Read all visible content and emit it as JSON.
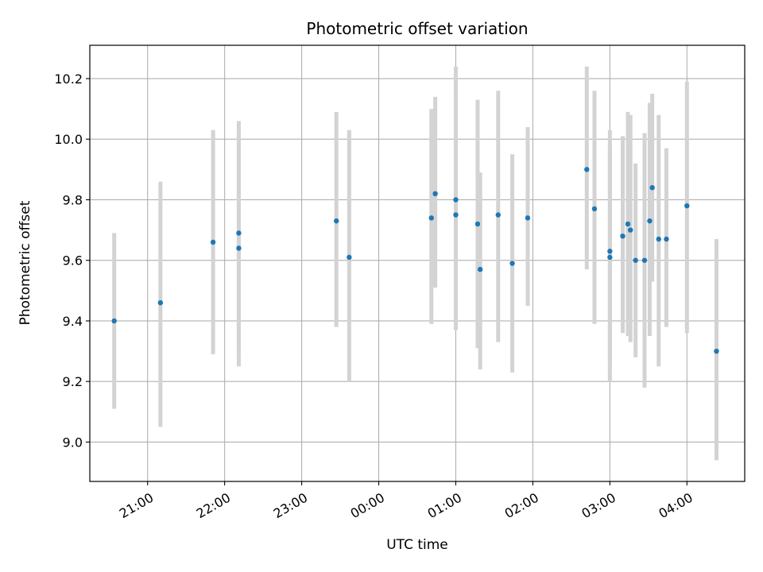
{
  "chart_data": {
    "type": "scatter",
    "title": "Photometric offset variation",
    "xlabel": "UTC time",
    "ylabel": "Photometric offset",
    "x_unit": "UTC time (HH:MM), times after midnight fall on the following day",
    "xlim": [
      "20:15",
      "04:45"
    ],
    "ylim": [
      8.87,
      10.31
    ],
    "x_ticks": [
      "21:00",
      "22:00",
      "23:00",
      "00:00",
      "01:00",
      "02:00",
      "03:00",
      "04:00"
    ],
    "y_ticks": [
      9.0,
      9.2,
      9.4,
      9.6,
      9.8,
      10.0,
      10.2
    ],
    "y_tick_labels": [
      "9.0",
      "9.2",
      "9.4",
      "9.6",
      "9.8",
      "10.0",
      "10.2"
    ],
    "grid": true,
    "colors": {
      "marker": "#1f77b4",
      "errorbar": "#d3d3d3",
      "grid": "#b0b0b0"
    },
    "points": [
      {
        "x": "20:34",
        "y": 9.4,
        "ylow": 9.11,
        "yhigh": 9.69
      },
      {
        "x": "21:10",
        "y": 9.46,
        "ylow": 9.05,
        "yhigh": 9.86
      },
      {
        "x": "21:51",
        "y": 9.66,
        "ylow": 9.29,
        "yhigh": 10.03
      },
      {
        "x": "22:11",
        "y": 9.69,
        "ylow": 9.31,
        "yhigh": 10.06
      },
      {
        "x": "22:11",
        "y": 9.64,
        "ylow": 9.25,
        "yhigh": 10.02
      },
      {
        "x": "23:27",
        "y": 9.73,
        "ylow": 9.38,
        "yhigh": 10.09
      },
      {
        "x": "23:37",
        "y": 9.61,
        "ylow": 9.2,
        "yhigh": 10.03
      },
      {
        "x": "00:41",
        "y": 9.74,
        "ylow": 9.39,
        "yhigh": 10.1
      },
      {
        "x": "00:44",
        "y": 9.82,
        "ylow": 9.51,
        "yhigh": 10.14
      },
      {
        "x": "01:00",
        "y": 9.75,
        "ylow": 9.37,
        "yhigh": 10.14
      },
      {
        "x": "01:00",
        "y": 9.8,
        "ylow": 9.37,
        "yhigh": 10.24
      },
      {
        "x": "01:17",
        "y": 9.72,
        "ylow": 9.31,
        "yhigh": 10.13
      },
      {
        "x": "01:19",
        "y": 9.57,
        "ylow": 9.24,
        "yhigh": 9.89
      },
      {
        "x": "01:33",
        "y": 9.75,
        "ylow": 9.33,
        "yhigh": 10.16
      },
      {
        "x": "01:44",
        "y": 9.59,
        "ylow": 9.23,
        "yhigh": 9.95
      },
      {
        "x": "01:56",
        "y": 9.74,
        "ylow": 9.45,
        "yhigh": 10.04
      },
      {
        "x": "02:42",
        "y": 9.9,
        "ylow": 9.57,
        "yhigh": 10.24
      },
      {
        "x": "02:48",
        "y": 9.77,
        "ylow": 9.39,
        "yhigh": 10.16
      },
      {
        "x": "03:00",
        "y": 9.63,
        "ylow": 9.2,
        "yhigh": 10.03
      },
      {
        "x": "03:00",
        "y": 9.61,
        "ylow": 9.25,
        "yhigh": 9.98
      },
      {
        "x": "03:10",
        "y": 9.68,
        "ylow": 9.36,
        "yhigh": 10.01
      },
      {
        "x": "03:14",
        "y": 9.72,
        "ylow": 9.35,
        "yhigh": 10.09
      },
      {
        "x": "03:16",
        "y": 9.7,
        "ylow": 9.33,
        "yhigh": 10.08
      },
      {
        "x": "03:20",
        "y": 9.6,
        "ylow": 9.28,
        "yhigh": 9.92
      },
      {
        "x": "03:27",
        "y": 9.6,
        "ylow": 9.18,
        "yhigh": 10.02
      },
      {
        "x": "03:31",
        "y": 9.73,
        "ylow": 9.35,
        "yhigh": 10.12
      },
      {
        "x": "03:33",
        "y": 9.84,
        "ylow": 9.53,
        "yhigh": 10.15
      },
      {
        "x": "03:38",
        "y": 9.67,
        "ylow": 9.25,
        "yhigh": 10.08
      },
      {
        "x": "03:44",
        "y": 9.67,
        "ylow": 9.38,
        "yhigh": 9.97
      },
      {
        "x": "04:00",
        "y": 9.78,
        "ylow": 9.36,
        "yhigh": 10.19
      },
      {
        "x": "04:23",
        "y": 9.3,
        "ylow": 8.94,
        "yhigh": 9.67
      }
    ]
  }
}
